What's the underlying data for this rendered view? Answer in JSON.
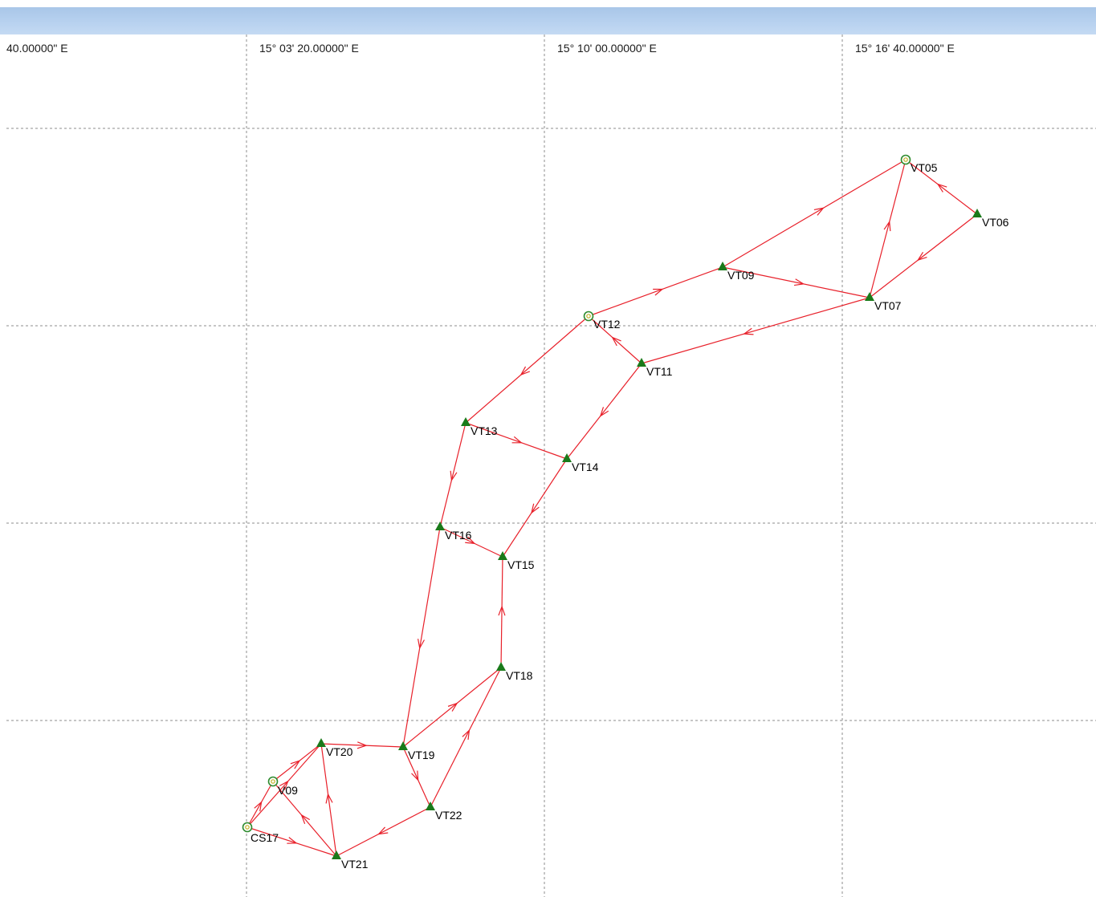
{
  "window": {
    "title": ""
  },
  "grid": {
    "longitude_labels": [
      "40.00000\" E",
      "15° 03' 20.00000\" E",
      "15° 10' 00.00000\" E",
      "15° 16' 40.00000\" E"
    ]
  },
  "colors": {
    "titlebar": "#b3cdee",
    "grid_line": "#8c8c8c",
    "vector": "#e8202a",
    "triangle": "#1a7a1a",
    "control_point": "#2e8b2e"
  },
  "stations": [
    {
      "id": "VT05",
      "label": "VT05",
      "kind": "control"
    },
    {
      "id": "VT06",
      "label": "VT06",
      "kind": "triangle"
    },
    {
      "id": "VT09",
      "label": "VT09",
      "kind": "triangle"
    },
    {
      "id": "VT07",
      "label": "VT07",
      "kind": "triangle"
    },
    {
      "id": "VT12",
      "label": "VT12",
      "kind": "control"
    },
    {
      "id": "VT11",
      "label": "VT11",
      "kind": "triangle"
    },
    {
      "id": "VT13",
      "label": "VT13",
      "kind": "triangle"
    },
    {
      "id": "VT14",
      "label": "VT14",
      "kind": "triangle"
    },
    {
      "id": "VT16",
      "label": "VT16",
      "kind": "triangle"
    },
    {
      "id": "VT15",
      "label": "VT15",
      "kind": "triangle"
    },
    {
      "id": "VT18",
      "label": "VT18",
      "kind": "triangle"
    },
    {
      "id": "VT20",
      "label": "VT20",
      "kind": "triangle"
    },
    {
      "id": "VT19",
      "label": "VT19",
      "kind": "triangle"
    },
    {
      "id": "V09",
      "label": "V09",
      "kind": "control"
    },
    {
      "id": "VT22",
      "label": "VT22",
      "kind": "triangle"
    },
    {
      "id": "CS17",
      "label": "CS17",
      "kind": "control"
    },
    {
      "id": "VT21",
      "label": "VT21",
      "kind": "triangle"
    }
  ],
  "vectors": [
    [
      "VT09",
      "VT05"
    ],
    [
      "VT06",
      "VT05"
    ],
    [
      "VT06",
      "VT07"
    ],
    [
      "VT07",
      "VT05"
    ],
    [
      "VT09",
      "VT07"
    ],
    [
      "VT12",
      "VT09"
    ],
    [
      "VT07",
      "VT11"
    ],
    [
      "VT11",
      "VT12"
    ],
    [
      "VT12",
      "VT13"
    ],
    [
      "VT11",
      "VT14"
    ],
    [
      "VT13",
      "VT14"
    ],
    [
      "VT13",
      "VT16"
    ],
    [
      "VT14",
      "VT15"
    ],
    [
      "VT16",
      "VT15"
    ],
    [
      "VT18",
      "VT15"
    ],
    [
      "VT16",
      "VT19"
    ],
    [
      "VT19",
      "VT18"
    ],
    [
      "VT22",
      "VT18"
    ],
    [
      "VT19",
      "VT22"
    ],
    [
      "VT20",
      "VT19"
    ],
    [
      "VT22",
      "VT21"
    ],
    [
      "VT21",
      "VT20"
    ],
    [
      "V09",
      "VT20"
    ],
    [
      "VT21",
      "V09"
    ],
    [
      "CS17",
      "V09"
    ],
    [
      "CS17",
      "VT20"
    ],
    [
      "CS17",
      "VT21"
    ]
  ]
}
